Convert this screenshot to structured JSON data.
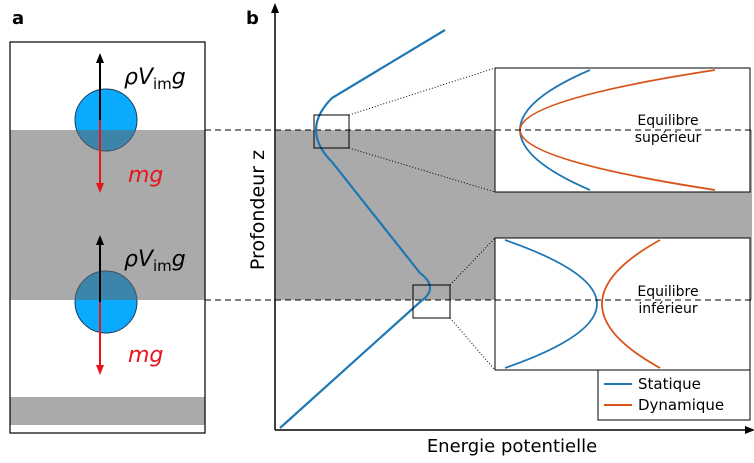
{
  "panel_a": {
    "label": "a",
    "upper_ball": {
      "buoyancy": [
        "ρV",
        "im",
        "g"
      ],
      "weight": "mg"
    },
    "lower_ball": {
      "buoyancy": [
        "ρV",
        "im",
        "g"
      ],
      "weight": "mg"
    }
  },
  "panel_b": {
    "label": "b",
    "y_axis": "Profondeur z",
    "x_axis": "Energie potentielle",
    "upper_inset": [
      "Equilibre",
      "supérieur"
    ],
    "lower_inset": [
      "Equilibre",
      "inférieur"
    ],
    "legend": [
      {
        "name": "Statique",
        "color": "#1f77b4"
      },
      {
        "name": "Dynamique",
        "color": "#d95319"
      }
    ]
  }
}
